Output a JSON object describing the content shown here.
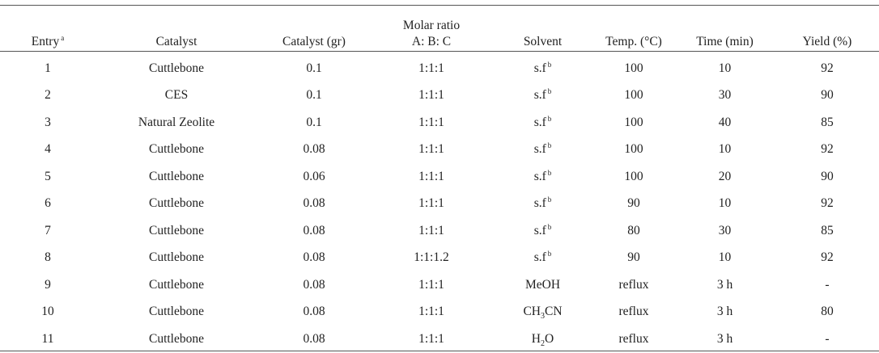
{
  "headers": {
    "entry": "Entry",
    "entry_mark": "a",
    "catalyst": "Catalyst",
    "catalyst_amount": "Catalyst (gr)",
    "molar_ratio_line1": "Molar ratio",
    "molar_ratio_line2": "A: B: C",
    "solvent": "Solvent",
    "temp": "Temp. (°C)",
    "time": "Time (min)",
    "yield": "Yield (%)"
  },
  "solvent_free": {
    "text": "s.f",
    "mark": "b"
  },
  "rows": [
    {
      "entry": "1",
      "catalyst": "Cuttlebone",
      "amount": "0.1",
      "ratio": "1:1:1",
      "solvent": "s.f",
      "temp": "100",
      "time": "10",
      "yield": "92"
    },
    {
      "entry": "2",
      "catalyst": "CES",
      "amount": "0.1",
      "ratio": "1:1:1",
      "solvent": "s.f",
      "temp": "100",
      "time": "30",
      "yield": "90"
    },
    {
      "entry": "3",
      "catalyst": "Natural Zeolite",
      "amount": "0.1",
      "ratio": "1:1:1",
      "solvent": "s.f",
      "temp": "100",
      "time": "40",
      "yield": "85"
    },
    {
      "entry": "4",
      "catalyst": "Cuttlebone",
      "amount": "0.08",
      "ratio": "1:1:1",
      "solvent": "s.f",
      "temp": "100",
      "time": "10",
      "yield": "92"
    },
    {
      "entry": "5",
      "catalyst": "Cuttlebone",
      "amount": "0.06",
      "ratio": "1:1:1",
      "solvent": "s.f",
      "temp": "100",
      "time": "20",
      "yield": "90"
    },
    {
      "entry": "6",
      "catalyst": "Cuttlebone",
      "amount": "0.08",
      "ratio": "1:1:1",
      "solvent": "s.f",
      "temp": "90",
      "time": "10",
      "yield": "92"
    },
    {
      "entry": "7",
      "catalyst": "Cuttlebone",
      "amount": "0.08",
      "ratio": "1:1:1",
      "solvent": "s.f",
      "temp": "80",
      "time": "30",
      "yield": "85"
    },
    {
      "entry": "8",
      "catalyst": "Cuttlebone",
      "amount": "0.08",
      "ratio": "1:1:1.2",
      "solvent": "s.f",
      "temp": "90",
      "time": "10",
      "yield": "92"
    },
    {
      "entry": "9",
      "catalyst": "Cuttlebone",
      "amount": "0.08",
      "ratio": "1:1:1",
      "solvent": "MeOH",
      "temp": "reflux",
      "time": "3 h",
      "yield": "-"
    },
    {
      "entry": "10",
      "catalyst": "Cuttlebone",
      "amount": "0.08",
      "ratio": "1:1:1",
      "solvent": "CH3CN",
      "temp": "reflux",
      "time": "3 h",
      "yield": "80"
    },
    {
      "entry": "11",
      "catalyst": "Cuttlebone",
      "amount": "0.08",
      "ratio": "1:1:1",
      "solvent": "H2O",
      "temp": "reflux",
      "time": "3 h",
      "yield": "-"
    }
  ]
}
